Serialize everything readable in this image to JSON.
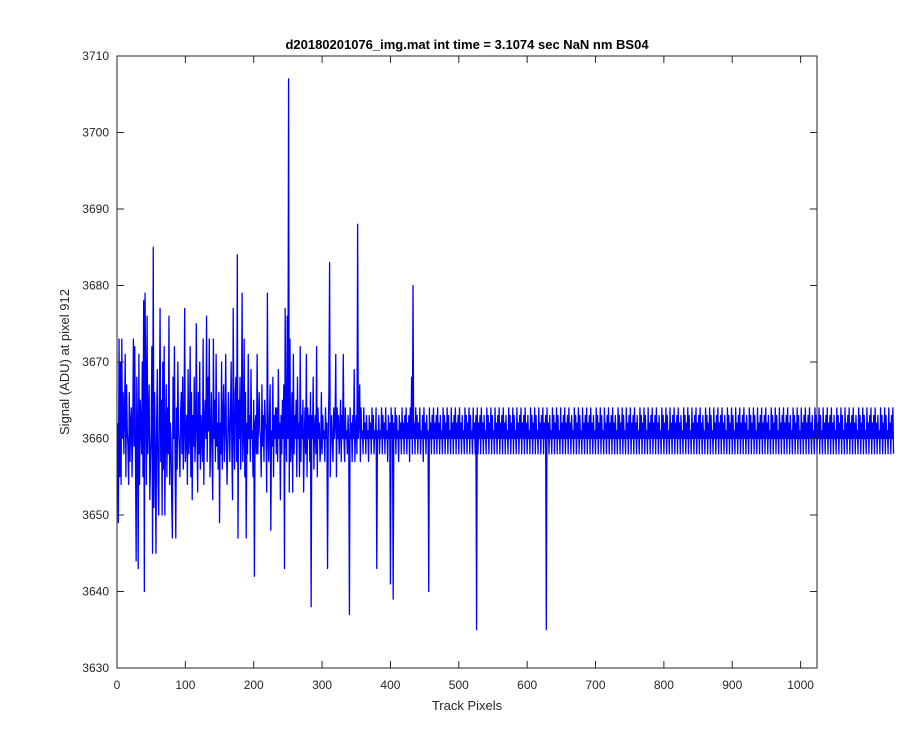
{
  "chart_data": {
    "type": "line",
    "title": "d20180201076_img.mat int time = 3.1074 sec  NaN nm BS04",
    "xlabel": "Track Pixels",
    "ylabel": "Signal (ADU) at pixel 912",
    "xlim": [
      0,
      1024
    ],
    "ylim": [
      3630,
      3710
    ],
    "xticks": [
      0,
      100,
      200,
      300,
      400,
      500,
      600,
      700,
      800,
      900,
      1000
    ],
    "yticks": [
      3630,
      3640,
      3650,
      3660,
      3670,
      3680,
      3690,
      3700,
      3710
    ],
    "grid": false,
    "legend": "none",
    "line_color": "#0000ff",
    "series": [
      {
        "x_start": 1,
        "x_step": 1,
        "values": [
          3662,
          3649,
          3673,
          3655,
          3670,
          3654,
          3673,
          3660,
          3666,
          3658,
          3663,
          3671,
          3655,
          3667,
          3661,
          3659,
          3654,
          3666,
          3657,
          3662,
          3664,
          3655,
          3661,
          3673,
          3659,
          3672,
          3658,
          3644,
          3668,
          3661,
          3643,
          3671,
          3654,
          3665,
          3662,
          3658,
          3670,
          3655,
          3678,
          3640,
          3679,
          3668,
          3654,
          3676,
          3658,
          3663,
          3667,
          3652,
          3657,
          3661,
          3672,
          3645,
          3685,
          3651,
          3666,
          3658,
          3645,
          3662,
          3669,
          3655,
          3650,
          3663,
          3677,
          3657,
          3665,
          3650,
          3670,
          3656,
          3672,
          3650,
          3661,
          3667,
          3655,
          3664,
          3658,
          3676,
          3654,
          3662,
          3660,
          3652,
          3647,
          3668,
          3660,
          3672,
          3657,
          3647,
          3664,
          3656,
          3670,
          3661,
          3659,
          3655,
          3663,
          3666,
          3658,
          3668,
          3656,
          3661,
          3677,
          3657,
          3660,
          3663,
          3654,
          3669,
          3658,
          3660,
          3672,
          3655,
          3666,
          3652,
          3663,
          3659,
          3668,
          3657,
          3661,
          3675,
          3660,
          3653,
          3666,
          3658,
          3670,
          3656,
          3663,
          3660,
          3657,
          3673,
          3654,
          3662,
          3665,
          3660,
          3676,
          3657,
          3668,
          3661,
          3673,
          3655,
          3660,
          3666,
          3658,
          3652,
          3673,
          3660,
          3665,
          3657,
          3671,
          3659,
          3662,
          3656,
          3666,
          3649,
          3662,
          3658,
          3670,
          3656,
          3663,
          3667,
          3657,
          3661,
          3671,
          3660,
          3654,
          3659,
          3666,
          3662,
          3657,
          3663,
          3670,
          3658,
          3652,
          3677,
          3661,
          3656,
          3666,
          3668,
          3657,
          3684,
          3647,
          3665,
          3660,
          3668,
          3656,
          3662,
          3679,
          3657,
          3660,
          3673,
          3655,
          3666,
          3647,
          3662,
          3658,
          3671,
          3660,
          3663,
          3657,
          3669,
          3660,
          3661,
          3655,
          3665,
          3642,
          3662,
          3663,
          3658,
          3671,
          3658,
          3662,
          3666,
          3661,
          3660,
          3655,
          3667,
          3659,
          3663,
          3657,
          3665,
          3662,
          3661,
          3653,
          3679,
          3660,
          3657,
          3663,
          3667,
          3648,
          3661,
          3659,
          3668,
          3655,
          3663,
          3660,
          3664,
          3658,
          3664,
          3657,
          3669,
          3660,
          3662,
          3652,
          3663,
          3658,
          3665,
          3660,
          3667,
          3643,
          3677,
          3661,
          3657,
          3676,
          3660,
          3707,
          3653,
          3673,
          3657,
          3660,
          3666,
          3653,
          3671,
          3658,
          3663,
          3660,
          3665,
          3655,
          3668,
          3660,
          3662,
          3655,
          3672,
          3657,
          3663,
          3660,
          3665,
          3653,
          3660,
          3664,
          3658,
          3671,
          3655,
          3664,
          3660,
          3663,
          3657,
          3666,
          3638,
          3663,
          3660,
          3668,
          3656,
          3661,
          3663,
          3658,
          3672,
          3655,
          3664,
          3660,
          3662,
          3657,
          3659,
          3666,
          3658,
          3663,
          3660,
          3661,
          3657,
          3664,
          3660,
          3662,
          3643,
          3660,
          3666,
          3683,
          3655,
          3662,
          3663,
          3659,
          3657,
          3664,
          3660,
          3662,
          3671,
          3655,
          3664,
          3660,
          3663,
          3658,
          3661,
          3665,
          3657,
          3663,
          3660,
          3671,
          3660,
          3657,
          3664,
          3660,
          3661,
          3658,
          3663,
          3660,
          3637,
          3664,
          3660,
          3662,
          3657,
          3663,
          3660,
          3669,
          3657,
          3661,
          3663,
          3658,
          3688,
          3660,
          3662,
          3667,
          3657,
          3664,
          3660,
          3661,
          3658,
          3664,
          3660,
          3662,
          3658,
          3663,
          3660,
          3661,
          3657,
          3663,
          3660,
          3662,
          3658,
          3664,
          3660,
          3663,
          3658,
          3661,
          3660,
          3664,
          3643,
          3661,
          3660,
          3663,
          3658,
          3661,
          3660,
          3664,
          3658,
          3663,
          3660,
          3662,
          3658,
          3664,
          3660,
          3661,
          3657,
          3663,
          3660,
          3662,
          3641,
          3664,
          3660,
          3663,
          3639,
          3662,
          3660,
          3664,
          3658,
          3663,
          3660,
          3661,
          3657,
          3663,
          3660,
          3662,
          3658,
          3664,
          3660,
          3662,
          3658,
          3663,
          3660,
          3664,
          3658,
          3662,
          3660,
          3663,
          3657,
          3664,
          3660,
          3668,
          3658,
          3680,
          3660,
          3662,
          3658,
          3664,
          3660,
          3663,
          3658,
          3662,
          3660,
          3664,
          3658,
          3661,
          3660,
          3663,
          3657,
          3664,
          3660,
          3662,
          3658,
          3663,
          3660,
          3661,
          3640,
          3664,
          3660,
          3662,
          3658,
          3663,
          3660,
          3664,
          3658,
          3662,
          3660,
          3663,
          3658,
          3664,
          3660,
          3662,
          3658,
          3663,
          3660,
          3661,
          3658,
          3664,
          3660,
          3663,
          3658,
          3662,
          3660,
          3664,
          3658,
          3663,
          3660,
          3661,
          3658,
          3664,
          3660,
          3662,
          3658,
          3663,
          3660,
          3664,
          3658,
          3662,
          3660,
          3663,
          3658,
          3664,
          3660,
          3662,
          3658,
          3663,
          3660,
          3661,
          3658,
          3664,
          3660,
          3663,
          3658,
          3662,
          3660,
          3664,
          3658,
          3663,
          3660,
          3661,
          3658,
          3664,
          3660,
          3662,
          3658,
          3663,
          3635,
          3664,
          3658,
          3662,
          3660,
          3663,
          3658,
          3664,
          3660,
          3662,
          3658,
          3663,
          3660,
          3661,
          3658,
          3664,
          3660,
          3663,
          3658,
          3662,
          3660,
          3664,
          3658,
          3663,
          3660,
          3661,
          3658,
          3664,
          3660,
          3662,
          3658,
          3663,
          3660,
          3664,
          3658,
          3662,
          3660,
          3663,
          3658,
          3664,
          3660,
          3662,
          3658,
          3663,
          3660,
          3661,
          3658,
          3664,
          3660,
          3663,
          3658,
          3662,
          3660,
          3664,
          3658,
          3663,
          3660,
          3661,
          3658,
          3664,
          3660,
          3662,
          3658,
          3663,
          3660,
          3664,
          3658,
          3662,
          3660,
          3663,
          3658,
          3664,
          3660,
          3662,
          3658,
          3663,
          3660,
          3661,
          3658,
          3664,
          3660,
          3663,
          3658,
          3662,
          3660,
          3664,
          3658,
          3663,
          3660,
          3661,
          3658,
          3664,
          3660,
          3662,
          3658,
          3663,
          3660,
          3664,
          3658,
          3662,
          3660,
          3663,
          3635,
          3664,
          3660,
          3662,
          3658,
          3663,
          3660,
          3661,
          3658,
          3664,
          3660,
          3663,
          3658,
          3662,
          3660,
          3664,
          3658,
          3663,
          3660,
          3661,
          3658,
          3664,
          3660,
          3662,
          3658,
          3663,
          3660,
          3664,
          3658,
          3662,
          3660,
          3663,
          3658,
          3664,
          3660,
          3662,
          3658,
          3663,
          3660,
          3661,
          3658,
          3664,
          3660,
          3663,
          3658,
          3662,
          3660,
          3664,
          3658,
          3663,
          3660,
          3661,
          3658,
          3664,
          3660,
          3662,
          3658,
          3663,
          3660,
          3664,
          3658,
          3662,
          3660,
          3663,
          3658,
          3664,
          3660,
          3662,
          3658,
          3663,
          3660,
          3661,
          3658,
          3664,
          3660,
          3663,
          3658,
          3662,
          3660,
          3664,
          3658,
          3663,
          3660,
          3661,
          3658,
          3664,
          3660,
          3662,
          3658,
          3663,
          3660,
          3664,
          3658,
          3662,
          3660,
          3663,
          3658,
          3664,
          3660,
          3662,
          3658,
          3663,
          3660,
          3661,
          3658,
          3664,
          3660,
          3663,
          3658,
          3662,
          3660,
          3664,
          3658,
          3663,
          3660,
          3661,
          3658,
          3664,
          3660,
          3662,
          3658,
          3663,
          3660,
          3664,
          3658,
          3662,
          3660,
          3663,
          3658,
          3664,
          3660,
          3662,
          3658,
          3663,
          3660,
          3661,
          3658,
          3664,
          3660,
          3663,
          3658,
          3662,
          3660,
          3664,
          3658,
          3663,
          3660,
          3661,
          3658,
          3664,
          3660,
          3662,
          3658,
          3663,
          3660,
          3664,
          3658,
          3662,
          3660,
          3663,
          3658,
          3664,
          3660,
          3662,
          3658,
          3663,
          3660,
          3661,
          3658,
          3664,
          3660,
          3663,
          3658,
          3662,
          3660,
          3664,
          3658,
          3663,
          3660,
          3661,
          3658,
          3664,
          3660,
          3662,
          3658,
          3663,
          3660,
          3664,
          3658,
          3662,
          3660,
          3663,
          3658,
          3664,
          3660,
          3662,
          3658,
          3663,
          3660,
          3661,
          3658,
          3664,
          3660,
          3663,
          3658,
          3662,
          3660,
          3664,
          3658,
          3663,
          3660,
          3661,
          3658,
          3664,
          3660,
          3662,
          3658,
          3663,
          3660,
          3664,
          3658,
          3662,
          3660,
          3663,
          3658,
          3664,
          3660,
          3662,
          3658,
          3663,
          3660,
          3661,
          3658,
          3664,
          3660,
          3663,
          3658,
          3662,
          3660,
          3664,
          3658,
          3663,
          3660,
          3661,
          3658,
          3664,
          3660,
          3662,
          3658,
          3663,
          3660,
          3664,
          3658,
          3662,
          3660,
          3663,
          3658,
          3664,
          3660,
          3662,
          3658,
          3663,
          3660,
          3661,
          3658,
          3664,
          3660,
          3663,
          3658,
          3662,
          3660,
          3664,
          3658,
          3663,
          3660,
          3661,
          3658,
          3664,
          3660,
          3662,
          3658,
          3663,
          3660,
          3664,
          3658,
          3662,
          3660,
          3663,
          3658,
          3664,
          3660,
          3662,
          3658,
          3663,
          3660,
          3661,
          3658,
          3664,
          3660,
          3663,
          3658,
          3662,
          3660,
          3664,
          3658,
          3663,
          3660,
          3661,
          3658,
          3664,
          3660,
          3662,
          3658,
          3663,
          3660,
          3664,
          3658,
          3662,
          3660,
          3663,
          3658,
          3664,
          3660,
          3662,
          3658,
          3663,
          3660,
          3661,
          3658,
          3664,
          3660,
          3663,
          3658,
          3662,
          3660,
          3664,
          3658,
          3663,
          3660,
          3661,
          3658,
          3664,
          3660,
          3662,
          3658,
          3663,
          3660,
          3664,
          3658,
          3662,
          3660,
          3663,
          3658,
          3664,
          3660,
          3662,
          3658,
          3663,
          3660,
          3661,
          3658,
          3664,
          3660,
          3663,
          3658,
          3662,
          3660,
          3664,
          3658,
          3663,
          3660,
          3661,
          3658,
          3664,
          3660,
          3662,
          3658,
          3663,
          3660,
          3664,
          3658,
          3662,
          3660,
          3663,
          3658,
          3664,
          3660,
          3662,
          3658,
          3663,
          3660,
          3661,
          3658,
          3664,
          3660,
          3663,
          3658,
          3662,
          3660,
          3664,
          3658,
          3663,
          3660,
          3661,
          3658,
          3664,
          3660,
          3662,
          3658,
          3663,
          3660,
          3664,
          3658,
          3662,
          3660,
          3663,
          3658,
          3664,
          3660,
          3662,
          3658,
          3663,
          3660,
          3661,
          3658,
          3664,
          3660,
          3663,
          3658,
          3662,
          3660,
          3664,
          3658,
          3663,
          3660,
          3661,
          3658,
          3664,
          3660,
          3662,
          3658,
          3663,
          3660,
          3664,
          3658,
          3662,
          3660,
          3663,
          3658,
          3664,
          3660,
          3662,
          3658,
          3663,
          3660,
          3661,
          3658,
          3664,
          3660,
          3663,
          3658,
          3662,
          3660,
          3664,
          3658,
          3663,
          3660,
          3661,
          3658,
          3664,
          3660,
          3662,
          3658,
          3663,
          3660,
          3664,
          3658,
          3662,
          3660,
          3663,
          3658,
          3664,
          3660,
          3662,
          3658,
          3663,
          3660,
          3661,
          3658,
          3664,
          3660,
          3663,
          3658,
          3662,
          3660,
          3664,
          3658,
          3663,
          3660,
          3661,
          3658,
          3664,
          3660,
          3662,
          3658,
          3663,
          3660,
          3664,
          3658
        ]
      }
    ]
  }
}
